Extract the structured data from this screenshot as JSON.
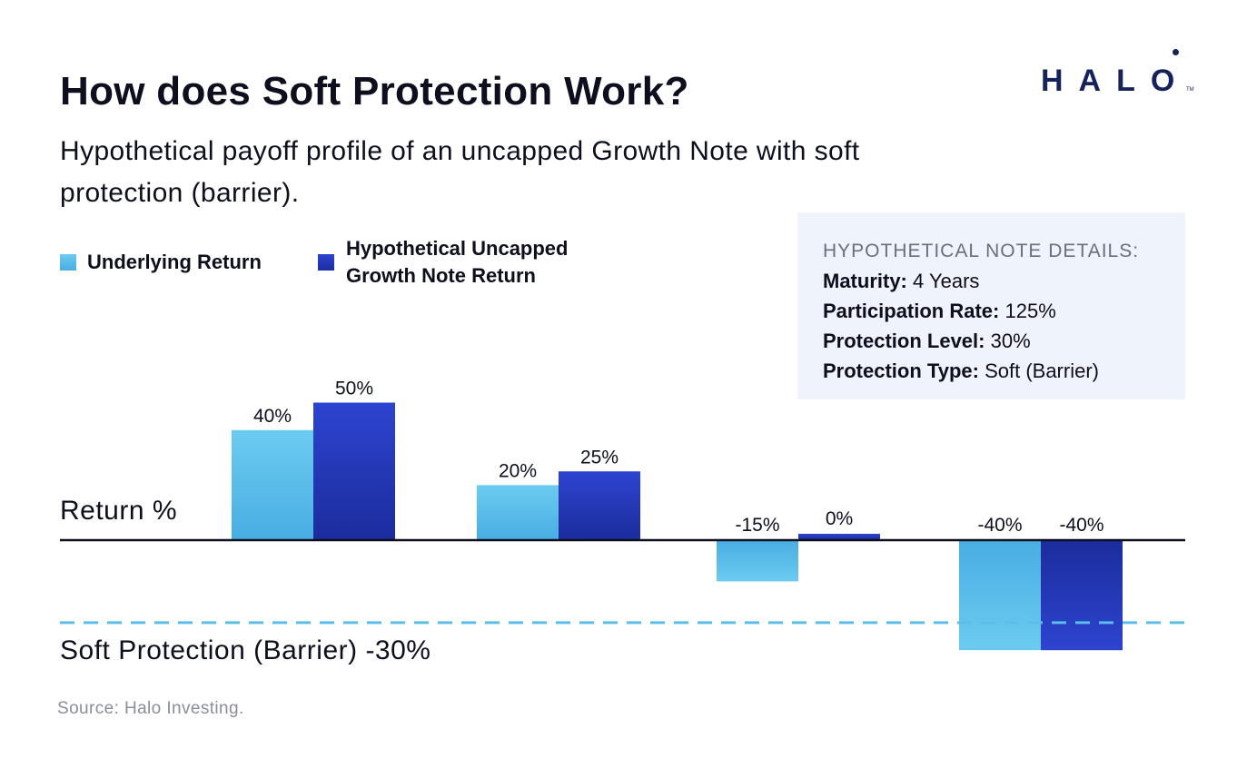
{
  "header": {
    "title": "How does Soft Protection Work?",
    "subtitle": "Hypothetical payoff profile of an uncapped Growth Note with soft protection (barrier)."
  },
  "logo": {
    "text": "HALO",
    "tm": "TM"
  },
  "legend": {
    "items": [
      {
        "label": "Underlying Return",
        "color": "#5bbde9"
      },
      {
        "label_line1": "Hypothetical Uncapped",
        "label_line2": "Growth Note Return",
        "color": "#2b41cc"
      }
    ]
  },
  "details": {
    "heading": "HYPOTHETICAL NOTE DETAILS:",
    "rows": [
      {
        "key": "Maturity:",
        "value": "4 Years"
      },
      {
        "key": "Participation Rate:",
        "value": "125%"
      },
      {
        "key": "Protection Level:",
        "value": "30%"
      },
      {
        "key": "Protection Type:",
        "value": "Soft (Barrier)"
      }
    ]
  },
  "chart_data": {
    "type": "bar",
    "categories": [
      "",
      "",
      "",
      ""
    ],
    "series": [
      {
        "name": "Underlying Return",
        "values": [
          40,
          20,
          -15,
          -40
        ],
        "labels": [
          "40%",
          "20%",
          "-15%",
          "-40%"
        ],
        "color": "#5bbde9"
      },
      {
        "name": "Hypothetical Uncapped Growth Note Return",
        "values": [
          50,
          25,
          0,
          -40
        ],
        "labels": [
          "50%",
          "25%",
          "0%",
          "-40%"
        ],
        "color": "#2b41cc"
      }
    ],
    "ylabel": "Return %",
    "barrier": {
      "value": -30,
      "label": "Soft Protection (Barrier) -30%",
      "color": "#5bbde9"
    },
    "ylim": [
      -40,
      50
    ]
  },
  "source": "Source: Halo Investing."
}
